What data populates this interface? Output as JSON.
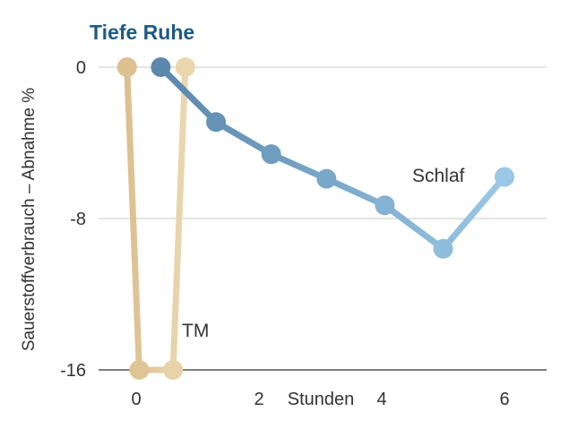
{
  "chart_data": {
    "type": "line",
    "title": "Tiefe Ruhe",
    "xlabel": "Stunden",
    "ylabel": "Sauerstoffverbrauch – Abnahme %",
    "xlim": [
      -0.2,
      6.4
    ],
    "ylim": [
      -16,
      0
    ],
    "y_ticks": [
      0,
      -8,
      -16
    ],
    "x_ticks": [
      0,
      2,
      4,
      6
    ],
    "grid": true,
    "series": [
      {
        "name": "TM",
        "color": "#dcc08f",
        "color_end": "#ead7b0",
        "x": [
          -0.15,
          0.05,
          0.6,
          0.8
        ],
        "y": [
          0,
          -16,
          -16,
          0
        ]
      },
      {
        "name": "Schlaf",
        "color": "#5b88ac",
        "color_end": "#9ac8e6",
        "x": [
          0.4,
          1.3,
          2.2,
          3.1,
          4.05,
          5.0,
          6.0
        ],
        "y": [
          0,
          -2.9,
          -4.6,
          -5.9,
          -7.3,
          -9.6,
          -5.8
        ]
      }
    ]
  }
}
